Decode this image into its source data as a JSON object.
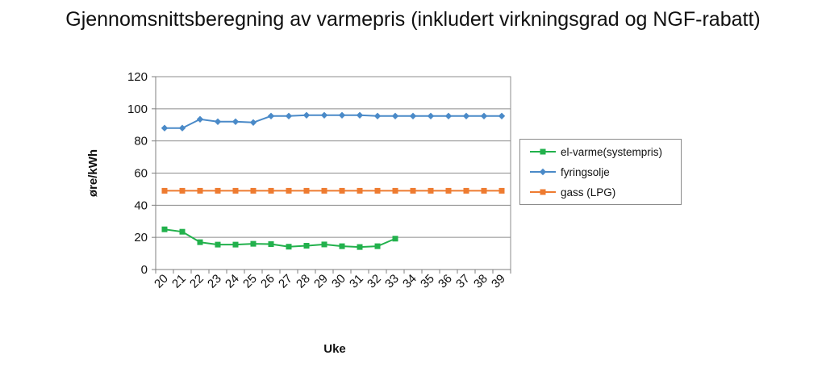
{
  "chart_data": {
    "type": "line",
    "title": "Gjennomsnittsberegning av varmepris (inkludert virkningsgrad og NGF-rabatt)",
    "xlabel": "Uke",
    "ylabel": "øre/kWh",
    "ylim": [
      0,
      120
    ],
    "yticks": [
      0,
      20,
      40,
      60,
      80,
      100,
      120
    ],
    "categories": [
      "20",
      "21",
      "22",
      "23",
      "24",
      "25",
      "26",
      "27",
      "28",
      "29",
      "30",
      "31",
      "32",
      "33",
      "34",
      "35",
      "36",
      "37",
      "38",
      "39"
    ],
    "grid": true,
    "legend_position": "right",
    "series": [
      {
        "name": "el-varme(systempris)",
        "color": "#22b14c",
        "marker": "square",
        "values": [
          25,
          23.5,
          17,
          15.5,
          15.5,
          16,
          15.8,
          14.2,
          14.8,
          15.6,
          14.5,
          14,
          14.5,
          19.2,
          null,
          null,
          null,
          null,
          null,
          null
        ]
      },
      {
        "name": "fyringsolje",
        "color": "#4a8ac8",
        "marker": "diamond",
        "values": [
          88,
          88,
          93.5,
          92,
          92,
          91.5,
          95.5,
          95.5,
          96,
          96,
          96,
          96,
          95.5,
          95.5,
          95.5,
          95.5,
          95.5,
          95.5,
          95.5,
          95.5
        ]
      },
      {
        "name": "gass (LPG)",
        "color": "#ee7b30",
        "marker": "square",
        "values": [
          49,
          49,
          49,
          49,
          49,
          49,
          49,
          49,
          49,
          49,
          49,
          49,
          49,
          49,
          49,
          49,
          49,
          49,
          49,
          49
        ]
      }
    ]
  }
}
